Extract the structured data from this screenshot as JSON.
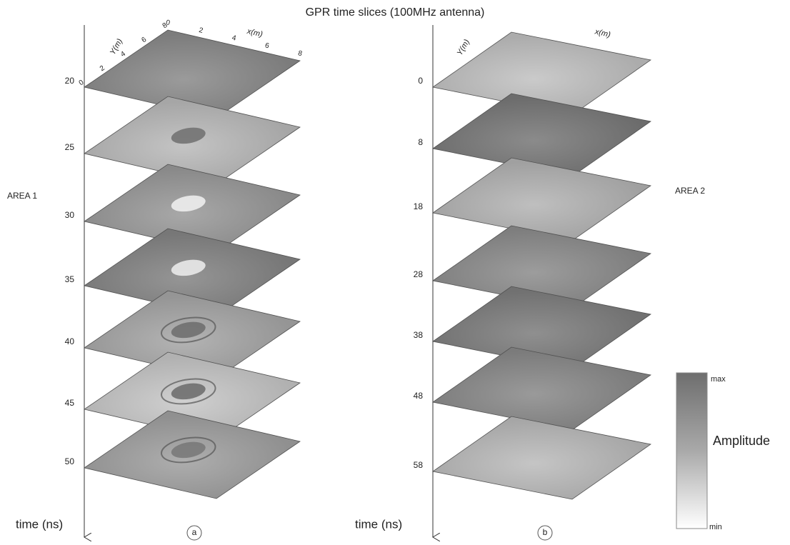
{
  "title": "GPR time slices (100MHz antenna)",
  "panels": [
    {
      "label": "a",
      "area": "AREA 1",
      "time_label": "time (ns)",
      "axis_x": "x(m)",
      "axis_y": "Y(m)",
      "x_ticks": [
        0,
        2,
        4,
        6,
        8
      ],
      "y_ticks": [
        0,
        2,
        4,
        6,
        8
      ],
      "slices": [
        20,
        25,
        30,
        35,
        40,
        45,
        50
      ]
    },
    {
      "label": "b",
      "area": "AREA 2",
      "time_label": "time (ns)",
      "axis_x": "x(m)",
      "axis_y": "Y(m)",
      "slices": [
        0,
        8,
        18,
        28,
        38,
        48,
        58
      ]
    }
  ],
  "colorbar": {
    "label": "Amplitude",
    "max": "max",
    "min": "min"
  }
}
